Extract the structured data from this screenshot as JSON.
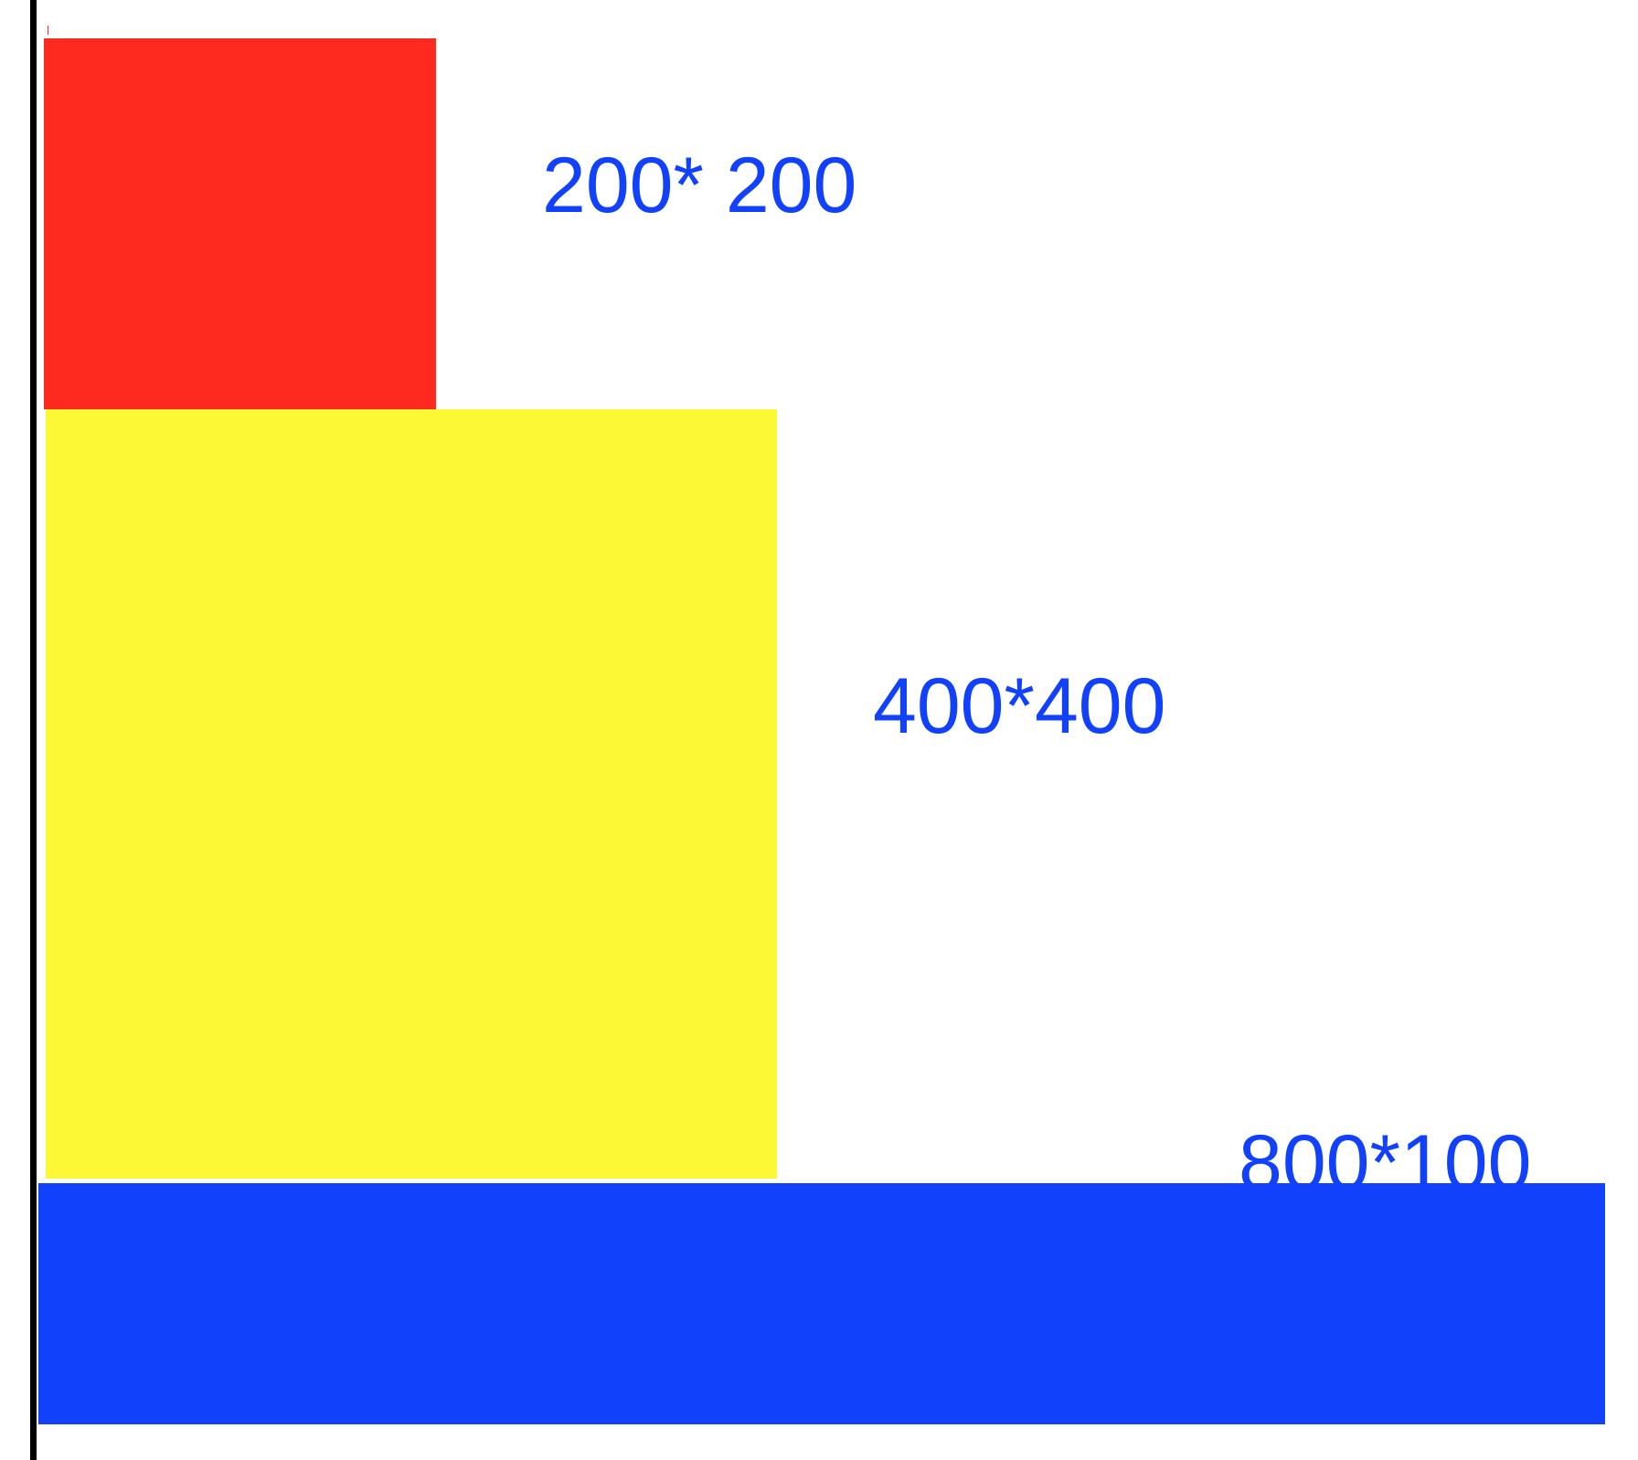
{
  "labels": {
    "small": "200* 200",
    "medium": "400*400",
    "wide": "800*100"
  },
  "colors": {
    "red": "#ff2a1f",
    "yellow": "#fcf835",
    "blue": "#1141fb",
    "label": "#1141fb",
    "axis": "#000000"
  }
}
